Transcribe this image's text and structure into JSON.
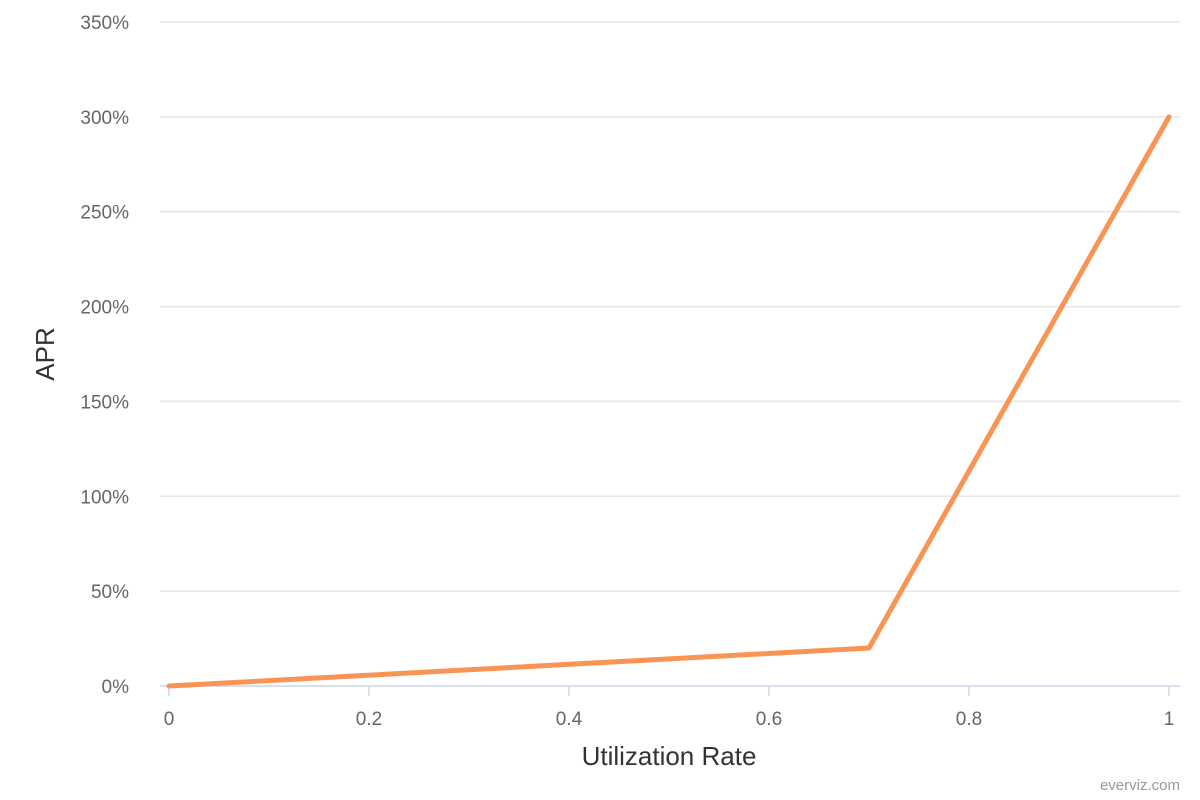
{
  "chart_data": {
    "type": "line",
    "title": "",
    "xlabel": "Utilization Rate",
    "ylabel": "APR",
    "x_ticks": [
      "0",
      "0.2",
      "0.4",
      "0.6",
      "0.8",
      "1"
    ],
    "y_ticks": [
      "0%",
      "50%",
      "100%",
      "150%",
      "200%",
      "250%",
      "300%",
      "350%"
    ],
    "xlim": [
      0,
      1
    ],
    "ylim": [
      0,
      350
    ],
    "grid": "horizontal",
    "legend": "none",
    "series": [
      {
        "color": "#fa9455",
        "points": [
          {
            "x": 0,
            "y": 0
          },
          {
            "x": 0.7,
            "y": 20
          },
          {
            "x": 1,
            "y": 300
          }
        ]
      }
    ]
  },
  "credit": "everviz.com"
}
